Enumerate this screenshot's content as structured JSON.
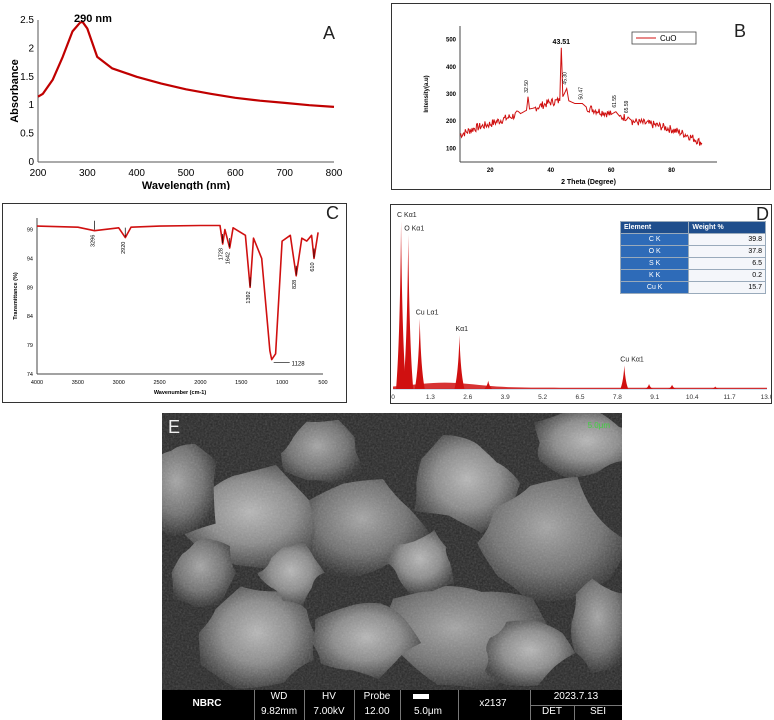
{
  "panels": {
    "A": {
      "letter": "A",
      "peak_label": "290 nm"
    },
    "B": {
      "letter": "B"
    },
    "C": {
      "letter": "C"
    },
    "D": {
      "letter": "D"
    },
    "E": {
      "letter": "E"
    }
  },
  "chart_data": [
    {
      "type": "line",
      "panel": "A",
      "xlabel": "Wavelength (nm)",
      "ylabel": "Absorbance",
      "xlim": [
        200,
        800
      ],
      "ylim": [
        0,
        2.5
      ],
      "xticks": [
        200,
        300,
        400,
        500,
        600,
        700,
        800
      ],
      "yticks": [
        0,
        0.5,
        1,
        1.5,
        2,
        2.5
      ],
      "ytick_labels": [
        "0",
        "0.5",
        "1",
        "1.5",
        "2",
        "2.5"
      ],
      "annotation": "290 nm",
      "color": "#c00000",
      "x": [
        200,
        210,
        230,
        250,
        270,
        285,
        290,
        300,
        320,
        350,
        400,
        450,
        500,
        550,
        600,
        650,
        700,
        750,
        800
      ],
      "y": [
        1.15,
        1.2,
        1.45,
        1.85,
        2.3,
        2.45,
        2.47,
        2.35,
        1.85,
        1.65,
        1.5,
        1.38,
        1.28,
        1.2,
        1.13,
        1.08,
        1.04,
        1.0,
        0.97
      ]
    },
    {
      "type": "line",
      "panel": "B",
      "xlabel": "2 Theta (Degree)",
      "ylabel": "Intensity(a.u)",
      "xlim": [
        10,
        95
      ],
      "ylim": [
        50,
        550
      ],
      "xticks": [
        20,
        40,
        60,
        80
      ],
      "yticks": [
        100,
        200,
        300,
        400,
        500
      ],
      "legend": "CuO",
      "color": "#d01010",
      "peaks": [
        {
          "x": 32.5,
          "y": 290,
          "label": "32.50"
        },
        {
          "x": 43.51,
          "y": 470,
          "label": "43.51"
        },
        {
          "x": 45.3,
          "y": 320,
          "label": "45.30"
        },
        {
          "x": 50.47,
          "y": 265,
          "label": "50.47"
        },
        {
          "x": 61.55,
          "y": 235,
          "label": "61.55"
        },
        {
          "x": 65.59,
          "y": 215,
          "label": "65.59"
        }
      ],
      "x": [
        10,
        15,
        20,
        25,
        30,
        32,
        32.5,
        33,
        35,
        40,
        43,
        43.51,
        44,
        45.3,
        46,
        48,
        50.47,
        52,
        55,
        60,
        61.55,
        63,
        65.59,
        67,
        70,
        75,
        80,
        85,
        90
      ],
      "y": [
        150,
        175,
        190,
        210,
        228,
        240,
        290,
        245,
        250,
        270,
        275,
        470,
        290,
        320,
        275,
        265,
        265,
        250,
        240,
        225,
        235,
        215,
        215,
        200,
        195,
        185,
        170,
        150,
        120
      ]
    },
    {
      "type": "line",
      "panel": "C",
      "xlabel": "Wavenumber (cm-1)",
      "ylabel": "Transmittance (%)",
      "xlim": [
        4000,
        500
      ],
      "ylim": [
        74,
        101
      ],
      "xticks": [
        4000,
        3500,
        3000,
        2500,
        2000,
        1500,
        1000,
        500
      ],
      "yticks": [
        74,
        79,
        84,
        89,
        94,
        99
      ],
      "color": "#d01010",
      "annotations": [
        "3296",
        "2920",
        "1728",
        "1642",
        "1392",
        "1128",
        "828",
        "610"
      ],
      "x": [
        4000,
        3500,
        3296,
        3000,
        2920,
        2850,
        2500,
        2000,
        1760,
        1728,
        1700,
        1642,
        1600,
        1450,
        1392,
        1350,
        1250,
        1150,
        1128,
        1080,
        1000,
        900,
        828,
        760,
        700,
        640,
        610,
        560
      ],
      "y": [
        99.6,
        99.4,
        98.8,
        99.3,
        97.6,
        99.4,
        99.6,
        99.7,
        99.7,
        96.5,
        99.0,
        95.8,
        99.3,
        98.0,
        89.0,
        97.5,
        94.0,
        78.0,
        76.5,
        77.5,
        97.0,
        98.0,
        91.0,
        97.5,
        97.0,
        98.0,
        94.0,
        98.5
      ]
    },
    {
      "type": "bar",
      "panel": "D",
      "xlim": [
        0,
        13
      ],
      "xticks": [
        0,
        1.3,
        2.6,
        3.9,
        5.2,
        6.5,
        7.8,
        9.1,
        10.4,
        11.7,
        13.0
      ],
      "xtick_labels": [
        "0",
        "1.3",
        "2.6",
        "3.9",
        "5.2",
        "6.5",
        "7.8",
        "9.1",
        "10.4",
        "11.7",
        "13.0"
      ],
      "color": "#d01010",
      "peaks": [
        {
          "x": 0.28,
          "rel": 1.0,
          "label": "C Kα1"
        },
        {
          "x": 0.53,
          "rel": 0.92,
          "label": "O Kα1"
        },
        {
          "x": 0.93,
          "rel": 0.42,
          "label": "Cu Lα1"
        },
        {
          "x": 2.31,
          "rel": 0.32,
          "label": "Kα1"
        },
        {
          "x": 3.31,
          "rel": 0.05,
          "label": ""
        },
        {
          "x": 8.04,
          "rel": 0.14,
          "label": "Cu Kα1"
        },
        {
          "x": 8.9,
          "rel": 0.03,
          "label": ""
        },
        {
          "x": 9.7,
          "rel": 0.025,
          "label": ""
        },
        {
          "x": 11.2,
          "rel": 0.015,
          "label": ""
        }
      ],
      "table": {
        "headers": [
          "Element",
          "Weight %"
        ],
        "rows": [
          [
            "C K",
            "39.8"
          ],
          [
            "O K",
            "37.8"
          ],
          [
            "S K",
            "6.5"
          ],
          [
            "K K",
            "0.2"
          ],
          [
            "Cu K",
            "15.7"
          ]
        ]
      }
    }
  ],
  "sem": {
    "scale_top": "5.0μm",
    "bar": {
      "org": "NBRC",
      "wd_label": "WD",
      "wd_value": "9.82mm",
      "hv_label": "HV",
      "hv_value": "7.00kV",
      "probe_label": "Probe",
      "probe_value": "12.00",
      "scale": "5.0μm",
      "mag": "x2137",
      "date": "2023.7.13",
      "det_label": "DET",
      "det_value": "SEI"
    }
  }
}
